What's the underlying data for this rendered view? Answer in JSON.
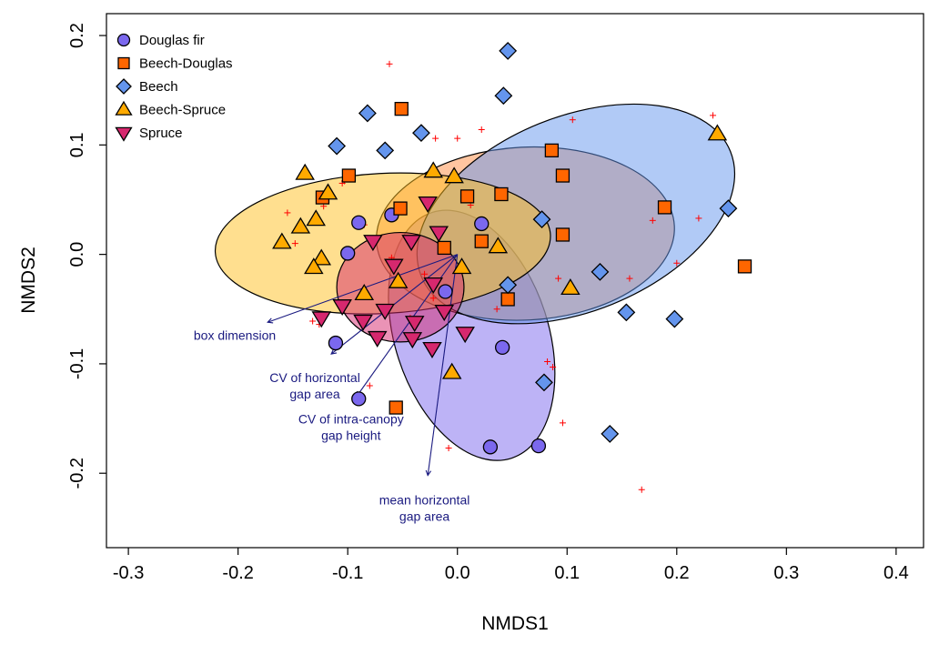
{
  "chart_data": {
    "type": "scatter",
    "title": "",
    "xlabel": "NMDS1",
    "ylabel": "NMDS2",
    "xlim": [
      -0.32,
      0.425
    ],
    "ylim": [
      -0.268,
      0.22
    ],
    "xticks": [
      -0.3,
      -0.2,
      -0.1,
      0.0,
      0.1,
      0.2,
      0.3,
      0.4
    ],
    "xtick_labels": [
      "-0.3",
      "-0.2",
      "-0.1",
      "0.0",
      "0.1",
      "0.2",
      "0.3",
      "0.4"
    ],
    "yticks": [
      -0.2,
      -0.1,
      0.0,
      0.1,
      0.2
    ],
    "ytick_labels": [
      "-0.2",
      "-0.1",
      "0.0",
      "0.1",
      "0.2"
    ],
    "grid": false,
    "legend_position": "top-left",
    "series": [
      {
        "name": "Douglas fir",
        "marker": "circle",
        "color": "#7b68ee",
        "points": [
          [
            -0.09,
            0.029
          ],
          [
            -0.06,
            0.036
          ],
          [
            -0.1,
            0.001
          ],
          [
            0.022,
            0.028
          ],
          [
            -0.111,
            -0.081
          ],
          [
            -0.011,
            -0.034
          ],
          [
            0.041,
            -0.085
          ],
          [
            -0.09,
            -0.132
          ],
          [
            0.03,
            -0.176
          ],
          [
            0.074,
            -0.175
          ]
        ],
        "ellipse": {
          "cx": 0.013,
          "cy": -0.074,
          "rx": 0.07,
          "ry": 0.118,
          "angle": -18,
          "fill": "#7b68ee",
          "opacity": 0.5
        }
      },
      {
        "name": "Beech-Douglas",
        "marker": "square",
        "color": "#ff6600",
        "points": [
          [
            -0.051,
            0.133
          ],
          [
            -0.099,
            0.072
          ],
          [
            -0.123,
            0.052
          ],
          [
            -0.052,
            0.042
          ],
          [
            0.009,
            0.053
          ],
          [
            0.04,
            0.055
          ],
          [
            -0.012,
            0.006
          ],
          [
            0.022,
            0.012
          ],
          [
            0.086,
            0.095
          ],
          [
            0.096,
            0.072
          ],
          [
            0.096,
            0.018
          ],
          [
            0.189,
            0.043
          ],
          [
            0.262,
            -0.011
          ],
          [
            0.046,
            -0.041
          ],
          [
            -0.056,
            -0.14
          ]
        ],
        "ellipse": {
          "cx": 0.062,
          "cy": 0.019,
          "rx": 0.136,
          "ry": 0.079,
          "angle": -3,
          "fill": "#ff8c42",
          "opacity": 0.5
        }
      },
      {
        "name": "Beech",
        "marker": "diamond",
        "color": "#6495ed",
        "points": [
          [
            0.046,
            0.186
          ],
          [
            0.042,
            0.145
          ],
          [
            -0.082,
            0.129
          ],
          [
            -0.033,
            0.111
          ],
          [
            -0.11,
            0.099
          ],
          [
            -0.066,
            0.095
          ],
          [
            0.077,
            0.032
          ],
          [
            0.13,
            -0.016
          ],
          [
            0.247,
            0.042
          ],
          [
            0.154,
            -0.053
          ],
          [
            0.198,
            -0.059
          ],
          [
            0.046,
            -0.028
          ],
          [
            0.079,
            -0.117
          ],
          [
            0.139,
            -0.164
          ]
        ],
        "ellipse": {
          "cx": 0.108,
          "cy": 0.037,
          "rx": 0.152,
          "ry": 0.089,
          "angle": -22,
          "fill": "#6495ed",
          "opacity": 0.5
        }
      },
      {
        "name": "Beech-Spruce",
        "marker": "triangle-up",
        "color": "#ffaa00",
        "points": [
          [
            -0.139,
            0.074
          ],
          [
            -0.118,
            0.056
          ],
          [
            -0.129,
            0.032
          ],
          [
            -0.143,
            0.025
          ],
          [
            -0.16,
            0.011
          ],
          [
            -0.124,
            -0.004
          ],
          [
            -0.131,
            -0.012
          ],
          [
            -0.022,
            0.076
          ],
          [
            -0.003,
            0.071
          ],
          [
            0.037,
            0.007
          ],
          [
            0.004,
            -0.012
          ],
          [
            -0.054,
            -0.025
          ],
          [
            -0.085,
            -0.036
          ],
          [
            0.237,
            0.11
          ],
          [
            0.103,
            -0.031
          ],
          [
            -0.005,
            -0.108
          ]
        ],
        "ellipse": {
          "cx": -0.068,
          "cy": 0.01,
          "rx": 0.153,
          "ry": 0.064,
          "angle": -3,
          "fill": "#ffbf1f",
          "opacity": 0.5
        }
      },
      {
        "name": "Spruce",
        "marker": "triangle-down",
        "color": "#d6286e",
        "points": [
          [
            -0.027,
            0.047
          ],
          [
            -0.017,
            0.02
          ],
          [
            -0.077,
            0.012
          ],
          [
            -0.042,
            0.012
          ],
          [
            -0.058,
            -0.01
          ],
          [
            -0.022,
            -0.027
          ],
          [
            -0.124,
            -0.058
          ],
          [
            -0.105,
            -0.047
          ],
          [
            -0.086,
            -0.061
          ],
          [
            -0.066,
            -0.051
          ],
          [
            -0.039,
            -0.062
          ],
          [
            -0.012,
            -0.052
          ],
          [
            -0.073,
            -0.076
          ],
          [
            -0.041,
            -0.077
          ],
          [
            -0.023,
            -0.086
          ],
          [
            0.007,
            -0.072
          ]
        ],
        "ellipse": {
          "cx": -0.052,
          "cy": -0.03,
          "rx": 0.058,
          "ry": 0.05,
          "angle": 0,
          "fill": "#d6286e",
          "opacity": 0.5
        }
      }
    ],
    "species_points": [
      [
        -0.062,
        0.174
      ],
      [
        0.022,
        0.114
      ],
      [
        0.105,
        0.123
      ],
      [
        0.233,
        0.127
      ],
      [
        0.22,
        0.033
      ],
      [
        -0.02,
        0.106
      ],
      [
        -0.155,
        0.038
      ],
      [
        -0.148,
        0.01
      ],
      [
        -0.103,
        0.067
      ],
      [
        0.0,
        0.106
      ],
      [
        -0.085,
        0.027
      ],
      [
        0.012,
        0.045
      ],
      [
        -0.022,
        -0.04
      ],
      [
        0.092,
        -0.022
      ],
      [
        0.2,
        -0.008
      ],
      [
        0.157,
        -0.022
      ],
      [
        0.178,
        0.031
      ],
      [
        0.082,
        -0.098
      ],
      [
        0.087,
        -0.103
      ],
      [
        0.096,
        -0.154
      ],
      [
        0.168,
        -0.215
      ],
      [
        -0.008,
        -0.177
      ],
      [
        -0.132,
        -0.061
      ],
      [
        -0.126,
        -0.064
      ],
      [
        -0.08,
        -0.12
      ],
      [
        -0.06,
        -0.003
      ],
      [
        -0.043,
        -0.058
      ],
      [
        -0.03,
        -0.018
      ],
      [
        0.036,
        -0.05
      ],
      [
        -0.122,
        0.044
      ],
      [
        -0.105,
        0.065
      ]
    ],
    "vectors": [
      {
        "label": "box dimension",
        "x": -0.173,
        "y": -0.062,
        "label_pos": [
          -0.203,
          -0.074
        ]
      },
      {
        "label": "CV of horizontal\ngap area",
        "x": -0.115,
        "y": -0.091,
        "label_pos": [
          -0.13,
          -0.12
        ]
      },
      {
        "label": "CV of intra-canopy\ngap height",
        "x": -0.092,
        "y": -0.13,
        "label_pos": [
          -0.097,
          -0.158
        ]
      },
      {
        "label": "mean horizontal\ngap area",
        "x": -0.027,
        "y": -0.202,
        "label_pos": [
          -0.03,
          -0.232
        ]
      }
    ],
    "vector_color": "#1a1a80",
    "species_point_color": "#ff0000"
  }
}
